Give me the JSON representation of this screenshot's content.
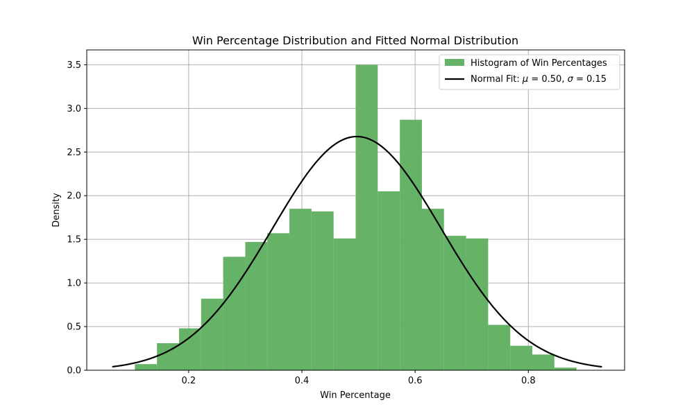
{
  "chart_data": {
    "type": "bar",
    "title": "Win Percentage Distribution and Fitted Normal Distribution",
    "xlabel": "Win Percentage",
    "ylabel": "Density",
    "xlim": [
      0.02,
      0.97
    ],
    "ylim": [
      0,
      3.67
    ],
    "xticks": [
      0.2,
      0.4,
      0.6,
      0.8
    ],
    "xtick_labels": [
      "0.2",
      "0.4",
      "0.6",
      "0.8"
    ],
    "yticks": [
      0,
      0.5,
      1.0,
      1.5,
      2.0,
      2.5,
      3.0,
      3.5
    ],
    "ytick_labels": [
      "0.0",
      "0.5",
      "1.0",
      "1.5",
      "2.0",
      "2.5",
      "3.0",
      "3.5"
    ],
    "grid": true,
    "legend_position": "top-right",
    "histogram": {
      "name": "Histogram of Win Percentages",
      "color": "#66b266",
      "bin_edges": [
        0.105,
        0.144,
        0.183,
        0.222,
        0.261,
        0.3,
        0.339,
        0.378,
        0.417,
        0.456,
        0.495,
        0.534,
        0.573,
        0.612,
        0.651,
        0.69,
        0.729,
        0.768,
        0.807,
        0.846,
        0.885
      ],
      "values": [
        0.07,
        0.31,
        0.48,
        0.82,
        1.3,
        1.47,
        1.57,
        1.85,
        1.82,
        1.51,
        3.5,
        2.05,
        2.87,
        1.85,
        1.54,
        1.51,
        0.52,
        0.28,
        0.18,
        0.03
      ]
    },
    "normal_fit": {
      "name": "Normal Fit: μ = 0.50, σ = 0.15",
      "label_prefix": "Normal Fit: ",
      "mu_label": "μ",
      "mu_value": "0.50",
      "sigma_label": "σ",
      "sigma_value": "0.15",
      "mu": 0.497,
      "sigma": 0.149,
      "x_range": [
        0.065,
        0.93
      ],
      "color": "#000000"
    }
  }
}
